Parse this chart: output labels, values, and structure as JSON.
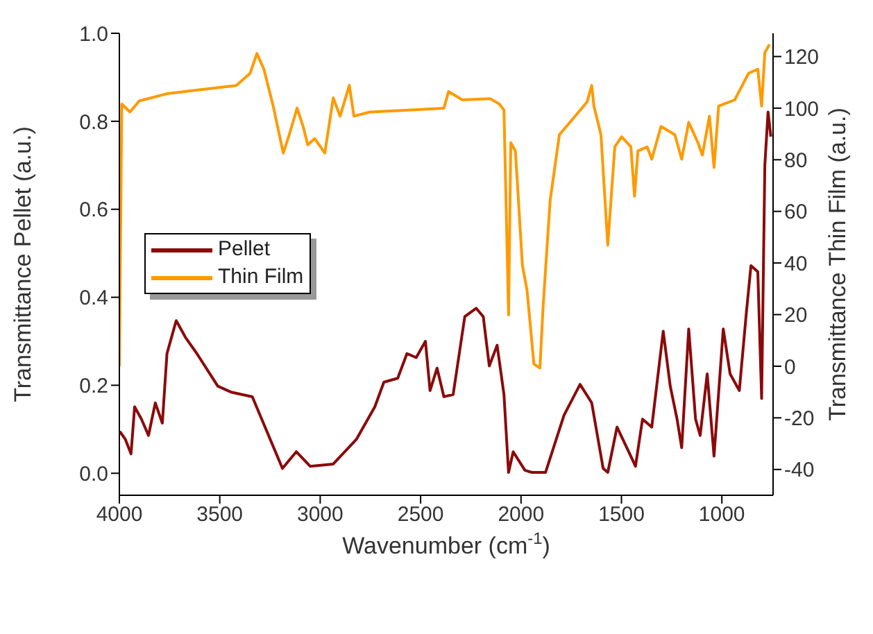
{
  "chart_data": {
    "type": "line",
    "xlabel": "Wavenumber (cm$^{-1}$)",
    "ylabel": "Transmittance Pellet (a.u.)",
    "y2label": "Transmittance Thin Film (a.u.)",
    "xlim": [
      4000,
      745
    ],
    "xticks": [
      4000,
      3500,
      3000,
      2500,
      2000,
      1500,
      1000
    ],
    "ylim": [
      -0.05,
      1.0
    ],
    "yticks": [
      {
        "value": 0,
        "label": "0.0"
      },
      0.2,
      0.4,
      0.6,
      0.8,
      {
        "value": 1,
        "label": "1.0"
      }
    ],
    "y2lim": [
      -50,
      129
    ],
    "y2ticks": [
      -40,
      -20,
      0,
      20,
      40,
      60,
      80,
      100,
      120
    ],
    "legend": "left",
    "series": [
      {
        "name": "Pellet",
        "color": "#8b0a0a",
        "x": [
          3998,
          3970,
          3942,
          3924,
          3890,
          3855,
          3821,
          3786,
          3763,
          3717,
          3671,
          3614,
          3510,
          3441,
          3338,
          3257,
          3188,
          3119,
          3050,
          2935,
          2820,
          2728,
          2683,
          2614,
          2568,
          2522,
          2476,
          2453,
          2418,
          2384,
          2338,
          2280,
          2223,
          2188,
          2158,
          2119,
          2085,
          2062,
          2039,
          1981,
          1947,
          1878,
          1786,
          1706,
          1648,
          1591,
          1568,
          1522,
          1464,
          1430,
          1395,
          1349,
          1292,
          1257,
          1223,
          1200,
          1165,
          1131,
          1108,
          1073,
          1039,
          993,
          959,
          913,
          878,
          855,
          821,
          802,
          786,
          770,
          756
        ],
        "values": [
          0.095,
          0.077,
          0.044,
          0.151,
          0.123,
          0.086,
          0.16,
          0.114,
          0.272,
          0.347,
          0.309,
          0.272,
          0.198,
          0.184,
          0.174,
          0.086,
          0.011,
          0.049,
          0.016,
          0.021,
          0.077,
          0.151,
          0.207,
          0.216,
          0.272,
          0.263,
          0.3,
          0.188,
          0.239,
          0.174,
          0.179,
          0.356,
          0.375,
          0.356,
          0.244,
          0.291,
          0.179,
          0.002,
          0.049,
          0.007,
          0.002,
          0.002,
          0.132,
          0.202,
          0.16,
          0.011,
          0.002,
          0.105,
          0.049,
          0.016,
          0.123,
          0.105,
          0.323,
          0.198,
          0.123,
          0.058,
          0.328,
          0.123,
          0.086,
          0.226,
          0.039,
          0.328,
          0.226,
          0.188,
          0.365,
          0.472,
          0.458,
          0.17,
          0.7,
          0.821,
          0.765
        ]
      },
      {
        "name": "Thin Film",
        "color": "#ff9a00",
        "axis": "y2",
        "x": [
          4000,
          3988,
          3947,
          3901,
          3763,
          3625,
          3418,
          3349,
          3315,
          3280,
          3234,
          3184,
          3154,
          3115,
          3085,
          3062,
          3027,
          2977,
          2935,
          2901,
          2855,
          2832,
          2752,
          2545,
          2384,
          2361,
          2292,
          2154,
          2108,
          2085,
          2062,
          2051,
          2028,
          1993,
          1970,
          1936,
          1906,
          1890,
          1855,
          1809,
          1671,
          1648,
          1637,
          1602,
          1568,
          1533,
          1499,
          1453,
          1435,
          1418,
          1372,
          1349,
          1303,
          1234,
          1200,
          1165,
          1119,
          1097,
          1062,
          1039,
          1016,
          936,
          867,
          821,
          802,
          786,
          763
        ],
        "values": [
          0,
          101.6,
          98.5,
          102.8,
          105.6,
          106.9,
          108.8,
          113.5,
          121.2,
          115,
          100.8,
          82.6,
          89.7,
          100,
          92.9,
          85.8,
          88.2,
          82.6,
          104,
          96.9,
          108.8,
          96.9,
          98.5,
          99.3,
          100,
          106.4,
          103.2,
          103.7,
          101.6,
          99.3,
          19.9,
          86.6,
          83.4,
          39,
          29.4,
          0.9,
          -0.7,
          23.1,
          64.3,
          89.7,
          102.4,
          108.8,
          100.8,
          89.7,
          46.9,
          85,
          88.9,
          85,
          65.9,
          83.4,
          85,
          80.2,
          92.9,
          89.7,
          80.2,
          94.5,
          86.6,
          81.8,
          96.9,
          77,
          100.8,
          103.2,
          113.5,
          115.1,
          100.8,
          121.5,
          124.7
        ]
      }
    ]
  }
}
